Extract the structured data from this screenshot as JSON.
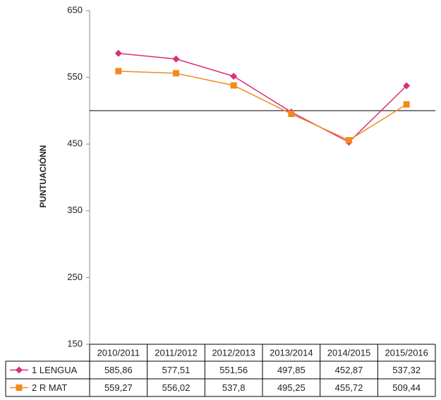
{
  "chart_data": {
    "type": "line",
    "y_label": "PUNTUACIÓNN",
    "categories": [
      "2010/2011",
      "2011/2012",
      "2012/2013",
      "2013/2014",
      "2014/2015",
      "2015/2016"
    ],
    "series": [
      {
        "name": "1 LENGUA",
        "color": "#d6317a",
        "marker": "diamond",
        "values": [
          585.86,
          577.51,
          551.56,
          497.85,
          452.87,
          537.32
        ],
        "value_labels": [
          "585,86",
          "577,51",
          "551,56",
          "497,85",
          "452,87",
          "537,32"
        ]
      },
      {
        "name": "2 R MAT",
        "color": "#f28a1e",
        "marker": "square",
        "values": [
          559.27,
          556.02,
          537.8,
          495.25,
          455.72,
          509.44
        ],
        "value_labels": [
          "559,27",
          "556,02",
          "537,8",
          "495,25",
          "455,72",
          "509,44"
        ]
      }
    ],
    "ylim": [
      150,
      650
    ],
    "yticks": [
      150,
      250,
      350,
      450,
      550,
      650
    ],
    "x_axis_crosses": 500
  }
}
